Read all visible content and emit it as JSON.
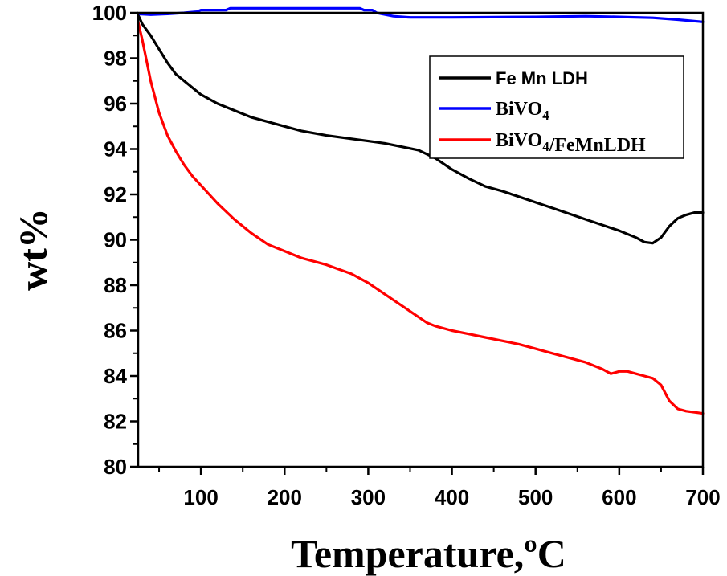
{
  "chart_data": {
    "type": "line",
    "title": "",
    "xlabel": "Temperature,ºC",
    "ylabel": "wt%",
    "xlim": [
      25,
      700
    ],
    "ylim": [
      80,
      100
    ],
    "xticks": [
      100,
      200,
      300,
      400,
      500,
      600,
      700
    ],
    "yticks": [
      80,
      82,
      84,
      86,
      88,
      90,
      92,
      94,
      96,
      98,
      100
    ],
    "grid": false,
    "legend_position": "top-right",
    "series": [
      {
        "name": "Fe Mn LDH",
        "color": "#000000",
        "x": [
          25,
          30,
          40,
          50,
          60,
          70,
          80,
          90,
          100,
          120,
          140,
          160,
          180,
          200,
          220,
          250,
          280,
          300,
          320,
          340,
          360,
          380,
          400,
          420,
          440,
          460,
          480,
          500,
          520,
          540,
          560,
          580,
          600,
          620,
          630,
          640,
          650,
          660,
          670,
          680,
          690,
          700
        ],
        "y": [
          99.9,
          99.5,
          99.0,
          98.4,
          97.8,
          97.3,
          97.0,
          96.7,
          96.4,
          96.0,
          95.7,
          95.4,
          95.2,
          95.0,
          94.8,
          94.6,
          94.45,
          94.35,
          94.25,
          94.1,
          93.95,
          93.6,
          93.1,
          92.7,
          92.35,
          92.15,
          91.9,
          91.65,
          91.4,
          91.15,
          90.9,
          90.65,
          90.4,
          90.1,
          89.9,
          89.85,
          90.1,
          90.6,
          90.95,
          91.1,
          91.2,
          91.2
        ]
      },
      {
        "name": "BiVO4",
        "color": "#0000ff",
        "x": [
          25,
          40,
          60,
          80,
          95,
          100,
          130,
          135,
          200,
          250,
          290,
          295,
          305,
          310,
          330,
          350,
          400,
          500,
          560,
          600,
          640,
          670,
          700
        ],
        "y": [
          99.95,
          99.92,
          99.95,
          100.0,
          100.05,
          100.12,
          100.12,
          100.2,
          100.2,
          100.2,
          100.2,
          100.12,
          100.12,
          100.0,
          99.85,
          99.8,
          99.8,
          99.82,
          99.85,
          99.82,
          99.78,
          99.7,
          99.6
        ]
      },
      {
        "name": "BiVO4/FeMnLDH",
        "color": "#ff0000",
        "x": [
          25,
          30,
          35,
          40,
          50,
          60,
          70,
          80,
          90,
          100,
          120,
          140,
          160,
          180,
          200,
          220,
          250,
          280,
          300,
          320,
          340,
          360,
          370,
          380,
          400,
          420,
          440,
          460,
          480,
          500,
          520,
          540,
          560,
          580,
          590,
          600,
          610,
          620,
          630,
          640,
          650,
          660,
          670,
          680,
          690,
          700
        ],
        "y": [
          99.6,
          98.8,
          97.9,
          97.0,
          95.6,
          94.6,
          93.9,
          93.3,
          92.8,
          92.4,
          91.6,
          90.9,
          90.3,
          89.8,
          89.5,
          89.2,
          88.9,
          88.5,
          88.1,
          87.6,
          87.1,
          86.6,
          86.35,
          86.2,
          86.0,
          85.85,
          85.7,
          85.55,
          85.4,
          85.2,
          85.0,
          84.8,
          84.6,
          84.3,
          84.1,
          84.2,
          84.2,
          84.1,
          84.0,
          83.9,
          83.6,
          82.9,
          82.55,
          82.45,
          82.4,
          82.35
        ]
      }
    ]
  }
}
